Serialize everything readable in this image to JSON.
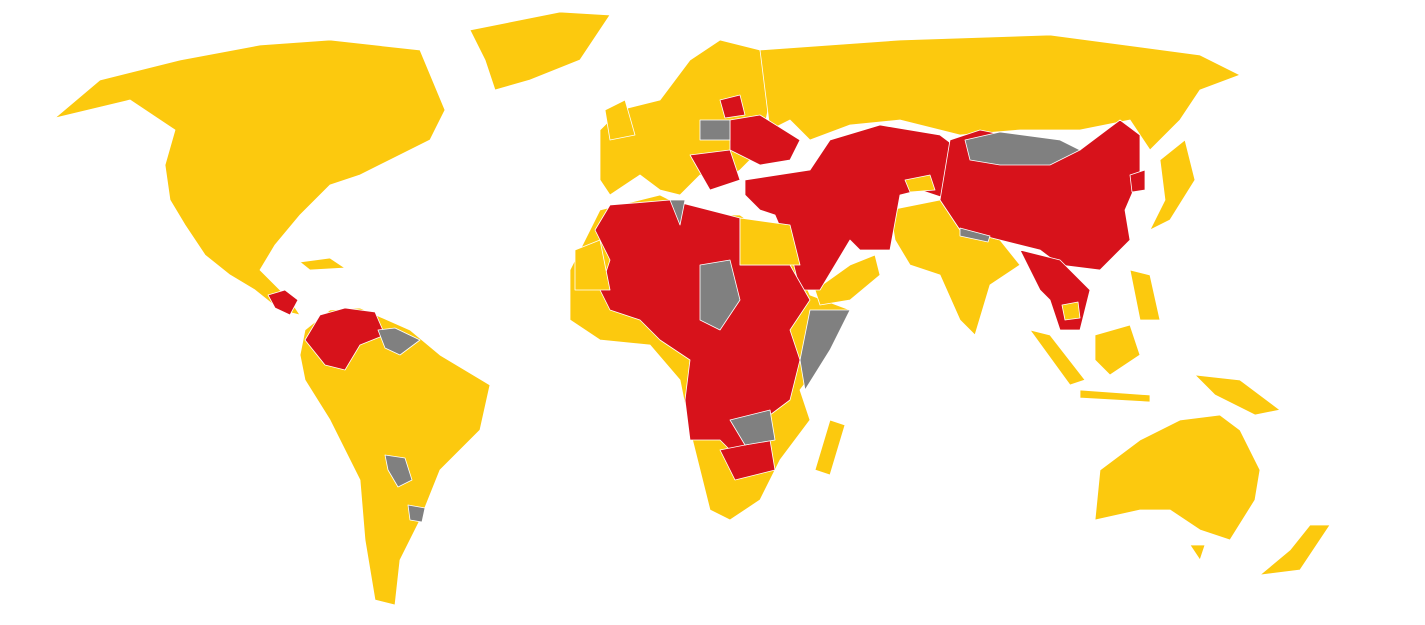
{
  "map": {
    "type": "world choropleth",
    "colors": {
      "yellow": "#FCC90E",
      "red": "#D7121B",
      "gray": "#808080",
      "ocean": "#FFFFFF",
      "border": "#FFFFFF"
    }
  }
}
